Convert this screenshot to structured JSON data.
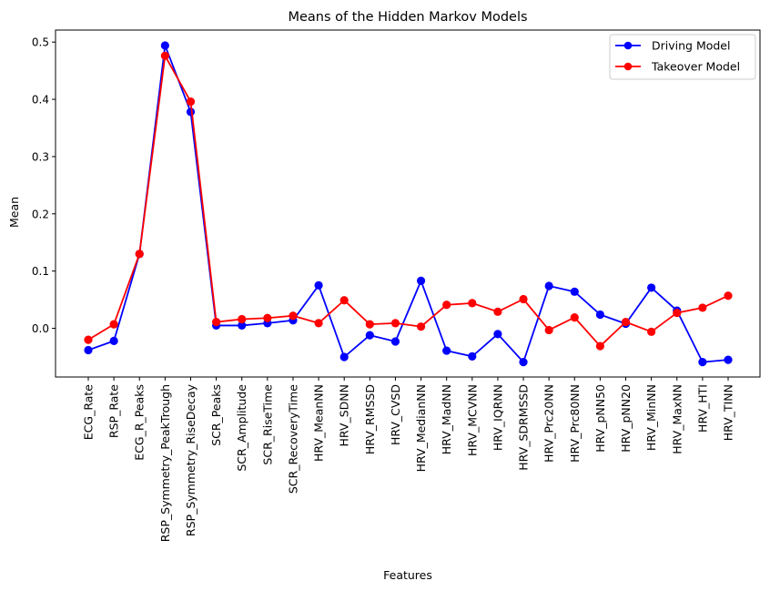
{
  "colors": {
    "driving": "#0000ff",
    "takeover": "#ff0000",
    "axes": "#000000",
    "background": "#ffffff"
  },
  "chart_data": {
    "type": "line",
    "title": "Means of the Hidden Markov Models",
    "xlabel": "Features",
    "ylabel": "Mean",
    "ylim": [
      -0.085,
      0.521
    ],
    "yticks": [
      0.0,
      0.1,
      0.2,
      0.3,
      0.4,
      0.5
    ],
    "ytick_labels": [
      "0.0",
      "0.1",
      "0.2",
      "0.3",
      "0.4",
      "0.5"
    ],
    "grid": false,
    "legend_position": "top-right",
    "categories": [
      "ECG_Rate",
      "RSP_Rate",
      "ECG_R_Peaks",
      "RSP_Symmetry_PeakTrough",
      "RSP_Symmetry_RiseDecay",
      "SCR_Peaks",
      "SCR_Amplitude",
      "SCR_RiseTime",
      "SCR_RecoveryTime",
      "HRV_MeanNN",
      "HRV_SDNN",
      "HRV_RMSSD",
      "HRV_CVSD",
      "HRV_MedianNN",
      "HRV_MadNN",
      "HRV_MCVNN",
      "HRV_IQRNN",
      "HRV_SDRMSSD",
      "HRV_Prc20NN",
      "HRV_Prc80NN",
      "HRV_pNN50",
      "HRV_pNN20",
      "HRV_MinNN",
      "HRV_MaxNN",
      "HRV_HTI",
      "HRV_TINN"
    ],
    "series": [
      {
        "name": "Driving Model",
        "color": "#0000ff",
        "values": [
          -0.038,
          -0.022,
          0.13,
          0.494,
          0.378,
          0.005,
          0.005,
          0.009,
          0.014,
          0.075,
          -0.05,
          -0.012,
          -0.023,
          0.083,
          -0.039,
          -0.049,
          -0.01,
          -0.059,
          0.074,
          0.064,
          0.024,
          0.008,
          0.071,
          0.031,
          -0.059,
          -0.055
        ]
      },
      {
        "name": "Takeover Model",
        "color": "#ff0000",
        "values": [
          -0.02,
          0.007,
          0.13,
          0.476,
          0.396,
          0.011,
          0.016,
          0.018,
          0.022,
          0.009,
          0.049,
          0.007,
          0.009,
          0.003,
          0.041,
          0.044,
          0.029,
          0.051,
          -0.003,
          0.019,
          -0.031,
          0.011,
          -0.006,
          0.027,
          0.036,
          0.057
        ]
      }
    ]
  }
}
